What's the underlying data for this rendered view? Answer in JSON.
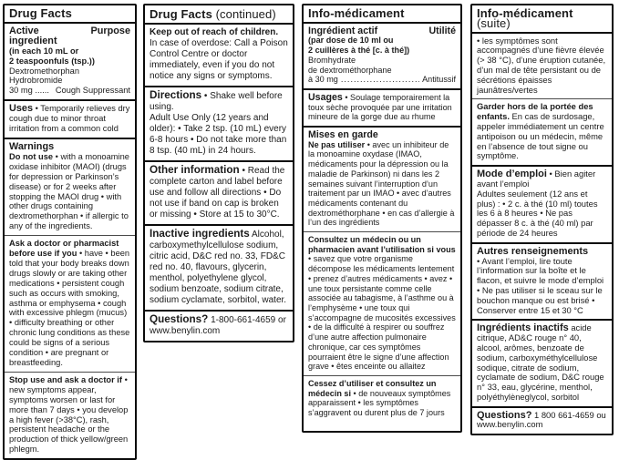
{
  "columns": [
    {
      "id": "drug-facts-en",
      "title": "Drug Facts",
      "title_suffix": "",
      "sections": [
        {
          "id": "active-ingredient",
          "rule": "none",
          "blocks": [
            {
              "type": "split",
              "big": true,
              "left": "Active ingredient",
              "right": "Purpose"
            },
            {
              "type": "p",
              "runs": [
                {
                  "b": "(in each 10 mL or"
                },
                {
                  "br": true
                },
                {
                  "b": "2 teaspoonfuls (tsp.))"
                }
              ]
            },
            {
              "type": "p",
              "runs": [
                {
                  "t": "Dextromethorphan"
                },
                {
                  "br": true
                },
                {
                  "t": "Hydrobromide"
                }
              ]
            },
            {
              "type": "split",
              "big": false,
              "left": "30 mg  ......",
              "right": "Cough Suppressant"
            }
          ]
        },
        {
          "id": "uses",
          "rule": "box",
          "blocks": [
            {
              "type": "p",
              "runs": [
                {
                  "h": "Uses"
                },
                {
                  "t": " • Temporarily relieves dry cough due to minor throat irritation from a common cold"
                }
              ]
            }
          ]
        },
        {
          "id": "warnings-do-not-use",
          "rule": "box",
          "blocks": [
            {
              "type": "h",
              "text": "Warnings"
            },
            {
              "type": "p",
              "runs": [
                {
                  "b": "Do not use"
                },
                {
                  "t": " • with a monoamine oxidase inhibitor (MAOI) (drugs for depression or Parkinson’s disease) or for 2 weeks after stopping the MAOI drug  • with other drugs containing dextromethorphan  • if allergic to any of the ingredients."
                }
              ]
            }
          ]
        },
        {
          "id": "ask-a-doctor",
          "rule": "thin",
          "blocks": [
            {
              "type": "p",
              "runs": [
                {
                  "b": "Ask a doctor or pharmacist before use if you"
                },
                {
                  "t": " • have • been told that your body breaks down drugs slowly or are taking other medications  • persistent cough such as occurs with smoking, asthma or emphysema  • cough with excessive phlegm (mucus) • difficulty breathing or other chronic lung conditions as these could be signs of a serious condition  • are pregnant or breastfeeding."
                }
              ]
            }
          ]
        },
        {
          "id": "stop-use",
          "rule": "thin",
          "blocks": [
            {
              "type": "p",
              "runs": [
                {
                  "b": "Stop use and ask a doctor if"
                },
                {
                  "t": " • new symptoms appear, symptoms worsen or last for more than 7 days  • you develop a high fever (>38°C), rash, persistent headache or the production of thick yellow/green phlegm."
                }
              ]
            }
          ]
        }
      ]
    },
    {
      "id": "drug-facts-continued",
      "title": "Drug Facts",
      "title_suffix": " (continued)",
      "sections": [
        {
          "id": "keep-out-of-reach",
          "rule": "none",
          "blocks": [
            {
              "type": "p",
              "runs": [
                {
                  "b": "Keep out of reach of children."
                },
                {
                  "t": " In case of overdose: Call a Poison Control Centre or doctor immediately, even if you do not notice any signs or symptoms."
                }
              ]
            }
          ]
        },
        {
          "id": "directions",
          "rule": "box",
          "blocks": [
            {
              "type": "p",
              "runs": [
                {
                  "h": "Directions"
                },
                {
                  "t": " • Shake well before using."
                }
              ]
            },
            {
              "type": "p",
              "runs": [
                {
                  "t": "Adult Use Only (12 years and older): • Take 2 tsp. (10 mL) every 6-8 hours  • Do not take more than 8 tsp. (40 mL) in 24 hours."
                }
              ]
            }
          ]
        },
        {
          "id": "other-information",
          "rule": "box",
          "blocks": [
            {
              "type": "p",
              "runs": [
                {
                  "h": "Other information"
                },
                {
                  "t": " • Read the complete carton and label before use and follow all directions  • Do not use if band on cap is broken or missing  • Store at 15 to 30°C."
                }
              ]
            }
          ]
        },
        {
          "id": "inactive-ingredients-en",
          "rule": "box",
          "blocks": [
            {
              "type": "p",
              "runs": [
                {
                  "h": "Inactive ingredients"
                },
                {
                  "t": " Alcohol, carboxymethylcellulose sodium, citric acid, D&C red no. 33, FD&C red no. 40, flavours, glycerin, menthol, polyethylene glycol, sodium benzoate, sodium citrate, sodium cyclamate, sorbitol, water."
                }
              ]
            }
          ]
        },
        {
          "id": "questions-en",
          "rule": "box",
          "blocks": [
            {
              "type": "p",
              "runs": [
                {
                  "h": "Questions?"
                },
                {
                  "t": " 1-800-661-4659 or www.benylin.com"
                }
              ]
            }
          ]
        }
      ]
    },
    {
      "id": "info-medicament",
      "title": "Info-médicament",
      "title_suffix": "",
      "sections": [
        {
          "id": "ingredient-actif",
          "rule": "none",
          "blocks": [
            {
              "type": "split",
              "big": true,
              "left": "Ingrédient actif",
              "right": "Utilité"
            },
            {
              "type": "p",
              "runs": [
                {
                  "b": "(par dose de 10 ml ou"
                },
                {
                  "br": true
                },
                {
                  "b": "2 cuillères à thé [c. à thé])"
                }
              ]
            },
            {
              "type": "p",
              "runs": [
                {
                  "t": "Bromhydrate"
                },
                {
                  "br": true
                },
                {
                  "t": "de dextrométhorphane"
                }
              ]
            },
            {
              "type": "split",
              "big": false,
              "left": "à 30 mg",
              "dots": "......................................",
              "right": "Antitussif"
            }
          ]
        },
        {
          "id": "usages",
          "rule": "box",
          "blocks": [
            {
              "type": "p",
              "runs": [
                {
                  "h": "Usages"
                },
                {
                  "t": " • Soulage temporairement la toux sèche provoquée par une irritation mineure de la gorge due au rhume"
                }
              ]
            }
          ]
        },
        {
          "id": "mises-en-garde",
          "rule": "box",
          "blocks": [
            {
              "type": "h",
              "text": "Mises en garde"
            },
            {
              "type": "p",
              "runs": [
                {
                  "b": "Ne pas utiliser"
                },
                {
                  "t": " • avec un inhibiteur de la monoamine oxydase (IMAO, médicaments pour la dépression ou la maladie de Parkinson) ni dans les 2 semaines suivant l’interruption d’un traitement par un IMAO  • avec d’autres médicaments contenant du dextrométhorphane  • en cas d’allergie à l’un des ingrédients"
                }
              ]
            }
          ]
        },
        {
          "id": "consultez-un-medecin",
          "rule": "thin",
          "blocks": [
            {
              "type": "p",
              "runs": [
                {
                  "b": "Consultez un médecin ou un pharmacien avant l’utilisation si vous"
                },
                {
                  "t": " • savez que votre organisme décompose les médicaments lentement  • prenez d’autres médicaments  • avez • une toux persistante comme celle associée au tabagisme, à l’asthme ou à l’emphysème  • une toux qui s’accompagne de mucosités excessives  • de la difficulté à respirer ou souffrez d’une autre affection pulmonaire chronique, car ces symptômes pourraient être le signe d’une affection grave  • êtes enceinte ou allaitez"
                }
              ]
            }
          ]
        },
        {
          "id": "cessez-d-utiliser",
          "rule": "thin",
          "blocks": [
            {
              "type": "p",
              "runs": [
                {
                  "b": "Cessez d’utiliser et consultez un médecin si"
                },
                {
                  "t": " • de nouveaux symptômes apparaissent  • les symptômes s’aggravent ou durent plus de 7 jours"
                }
              ]
            }
          ]
        }
      ]
    },
    {
      "id": "info-medicament-suite",
      "title": "Info-médicament",
      "title_suffix": " (suite)",
      "sections": [
        {
          "id": "symptomes-fievre",
          "rule": "none",
          "blocks": [
            {
              "type": "p",
              "runs": [
                {
                  "t": "• les symptômes sont accompagnés d’une fièvre élevée (> 38 °C), d’une éruption cutanée, d’un mal de tête persistant ou de sécrétions épaisses jaunâtres/vertes"
                }
              ]
            }
          ]
        },
        {
          "id": "garder-hors-de-portee",
          "rule": "thin",
          "blocks": [
            {
              "type": "p",
              "runs": [
                {
                  "b": "Garder hors de la portée des enfants."
                },
                {
                  "t": " En cas de surdosage, appeler immédiatement un centre antipoison ou un médecin, même en l’absence de tout signe ou symptôme."
                }
              ]
            }
          ]
        },
        {
          "id": "mode-d-emploi",
          "rule": "box",
          "blocks": [
            {
              "type": "p",
              "runs": [
                {
                  "h": "Mode d’emploi"
                },
                {
                  "t": " • Bien agiter avant l’emploi"
                }
              ]
            },
            {
              "type": "p",
              "runs": [
                {
                  "t": "Adultes seulement (12 ans et plus) : • 2 c. à thé (10 ml) toutes les 6 à 8 heures  • Ne pas dépasser 8 c. à thé (40 ml) par période de 24 heures"
                }
              ]
            }
          ]
        },
        {
          "id": "autres-renseignements",
          "rule": "box",
          "blocks": [
            {
              "type": "h",
              "text": "Autres renseignements"
            },
            {
              "type": "p",
              "runs": [
                {
                  "t": "• Avant l’emploi, lire toute l’information sur la boîte et le flacon, et suivre le mode d’emploi • Ne pas utiliser si le sceau sur le bouchon manque ou est brisé • Conserver entre 15 et 30 °C"
                }
              ]
            }
          ]
        },
        {
          "id": "ingredients-inactifs-fr",
          "rule": "box",
          "blocks": [
            {
              "type": "p",
              "runs": [
                {
                  "h": "Ingrédients inactifs"
                },
                {
                  "t": " acide citrique, AD&C rouge n° 40, alcool, arômes, benzoate de sodium, carboxyméthylcellulose sodique, citrate de sodium, cyclamate de sodium, D&C rouge n° 33, eau, glycérine, menthol, polyéthylèneglycol, sorbitol"
                }
              ]
            }
          ]
        },
        {
          "id": "questions-fr",
          "rule": "box",
          "blocks": [
            {
              "type": "p",
              "runs": [
                {
                  "h": "Questions?"
                },
                {
                  "t": " 1 800 661-4659 ou www.benylin.com"
                }
              ]
            }
          ]
        }
      ]
    }
  ]
}
